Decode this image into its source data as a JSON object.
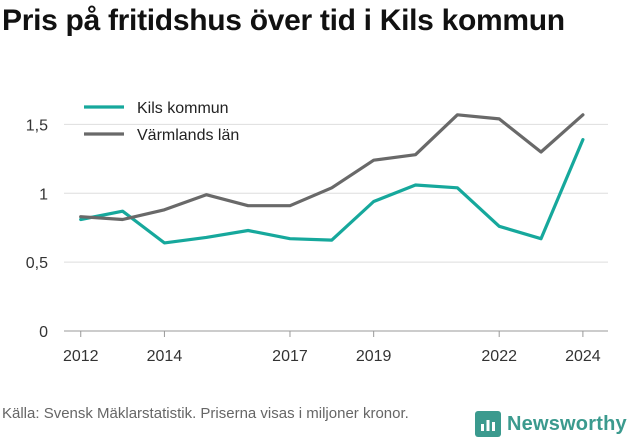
{
  "chart_data": {
    "type": "line",
    "title": "Pris på fritidshus över tid i Kils kommun",
    "x": [
      2012,
      2013,
      2014,
      2015,
      2016,
      2017,
      2018,
      2019,
      2020,
      2021,
      2022,
      2023,
      2024
    ],
    "series": [
      {
        "name": "Kils kommun",
        "color": "#16a89c",
        "values": [
          0.81,
          0.87,
          0.64,
          0.68,
          0.73,
          0.67,
          0.66,
          0.94,
          1.06,
          1.04,
          0.76,
          0.67,
          1.39
        ]
      },
      {
        "name": "Värmlands län",
        "color": "#696969",
        "values": [
          0.83,
          0.81,
          0.88,
          0.99,
          0.91,
          0.91,
          1.04,
          1.24,
          1.28,
          1.57,
          1.54,
          1.3,
          1.57
        ]
      }
    ],
    "xticks": [
      "2012",
      "2014",
      "2017",
      "2019",
      "2022",
      "2024"
    ],
    "yticks": [
      "0",
      "0,5",
      "1",
      "1,5"
    ],
    "ylim": [
      0,
      1.75
    ],
    "xlim": [
      2011.6,
      2024.6
    ],
    "grid": "horizontal",
    "legend": "top-left"
  },
  "footer": {
    "source": "Källa: Svensk Mäklarstatistik. Priserna visas i miljoner kronor.",
    "brand": "Newsworthy"
  }
}
